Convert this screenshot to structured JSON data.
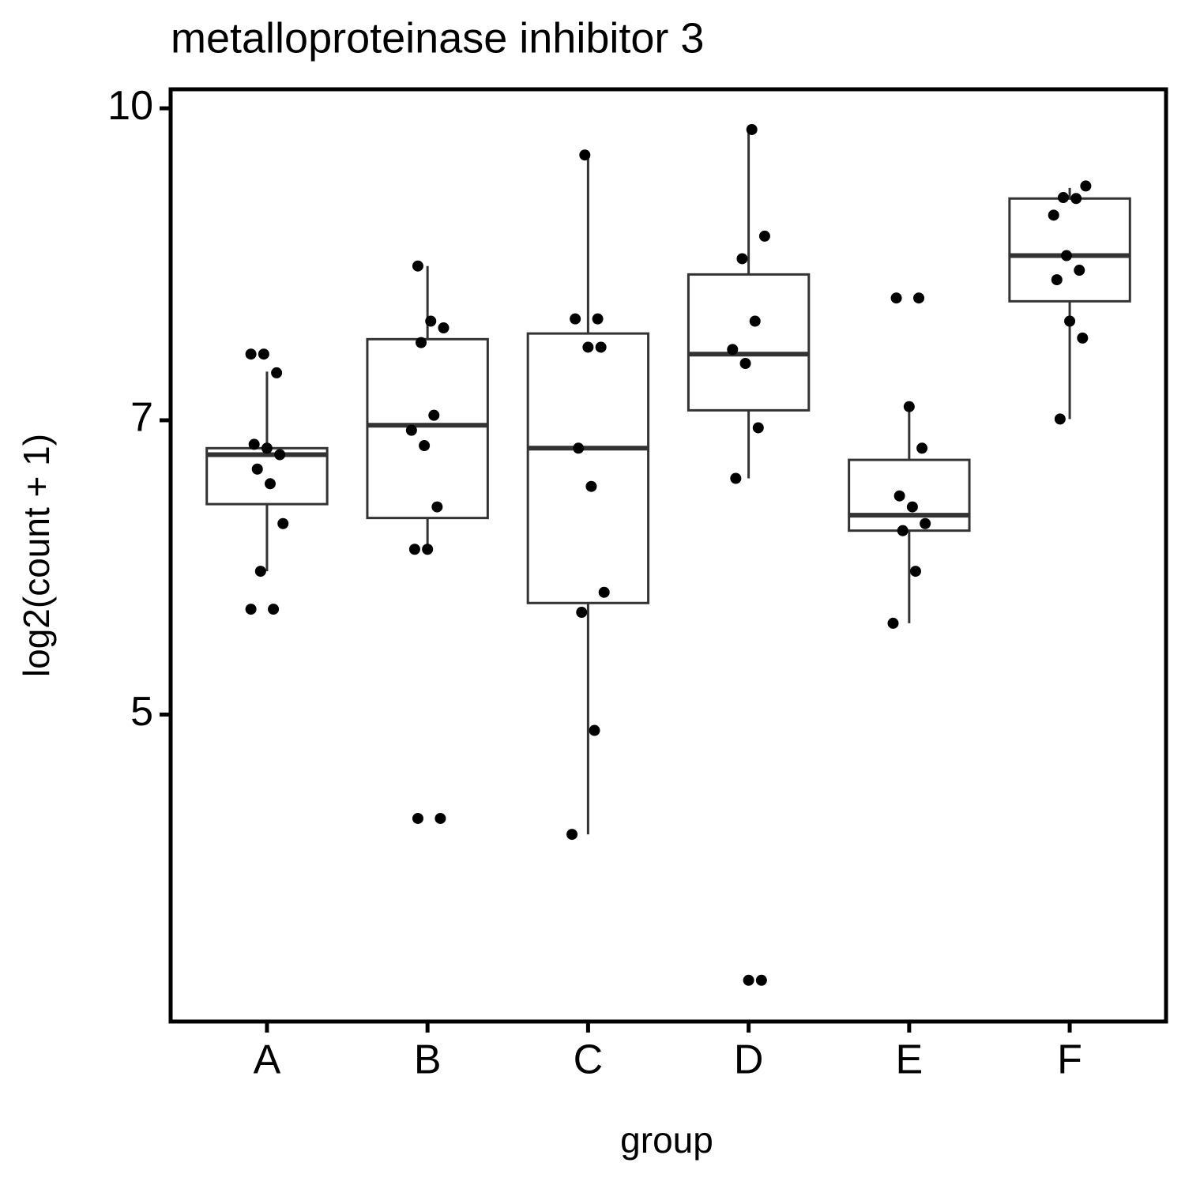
{
  "chart_data": {
    "type": "box",
    "title": "metalloproteinase inhibitor 3",
    "x_label": "group",
    "y_label": "log2(count + 1)",
    "categories": [
      "A",
      "B",
      "C",
      "D",
      "E",
      "F"
    ],
    "log_scale": true,
    "ylim": [
      3.52,
      10.22
    ],
    "yticks": [
      5,
      7,
      10
    ],
    "boxes": [
      {
        "min": 5.89,
        "q1": 6.36,
        "median": 6.73,
        "q3": 6.78,
        "max": 7.4
      },
      {
        "min": 6.04,
        "q1": 6.26,
        "median": 6.96,
        "q3": 7.68,
        "max": 8.35
      },
      {
        "min": 4.36,
        "q1": 5.68,
        "median": 6.78,
        "q3": 7.73,
        "max": 9.47
      },
      {
        "min": 6.55,
        "q1": 7.08,
        "median": 7.55,
        "q3": 8.27,
        "max": 9.75
      },
      {
        "min": 5.55,
        "q1": 6.17,
        "median": 6.28,
        "q3": 6.69,
        "max": 7.11
      },
      {
        "min": 7.01,
        "q1": 8.02,
        "median": 8.45,
        "q3": 9.02,
        "max": 9.13
      }
    ],
    "points": [
      [
        7.55,
        7.55,
        7.39,
        6.81,
        6.78,
        6.73,
        6.62,
        6.51,
        6.22,
        5.89,
        5.64,
        5.64
      ],
      [
        8.35,
        7.84,
        7.78,
        7.65,
        7.04,
        6.92,
        6.8,
        6.34,
        6.04,
        6.04,
        4.44,
        4.44
      ],
      [
        9.48,
        7.86,
        7.86,
        7.61,
        7.61,
        6.78,
        6.49,
        5.75,
        5.62,
        4.91,
        4.36
      ],
      [
        9.76,
        8.64,
        8.42,
        7.84,
        7.59,
        7.47,
        6.94,
        6.55,
        3.69,
        3.69
      ],
      [
        8.05,
        8.05,
        7.11,
        6.78,
        6.42,
        6.34,
        6.22,
        6.17,
        5.89,
        5.55
      ],
      [
        9.15,
        9.03,
        9.02,
        8.85,
        8.45,
        8.31,
        8.22,
        7.84,
        7.69,
        7.01
      ]
    ],
    "box_color": "#333333",
    "point_color": "#000000"
  }
}
